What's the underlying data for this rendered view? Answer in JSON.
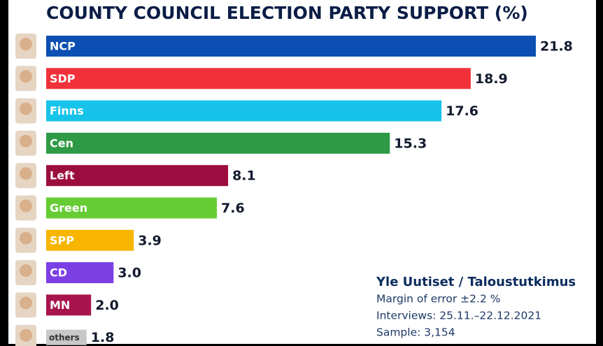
{
  "chart_data": {
    "type": "bar",
    "orientation": "horizontal",
    "title": "COUNTY COUNCIL ELECTION PARTY SUPPORT (%)",
    "categories": [
      "NCP",
      "SDP",
      "Finns",
      "Cen",
      "Left",
      "Green",
      "SPP",
      "CD",
      "MN",
      "others"
    ],
    "values": [
      21.8,
      18.9,
      17.6,
      15.3,
      8.1,
      7.6,
      3.9,
      3.0,
      2.0,
      1.8
    ],
    "value_labels": [
      "21.8",
      "18.9",
      "17.6",
      "15.3",
      "8.1",
      "7.6",
      "3.9",
      "3.0",
      "2.0",
      "1.8"
    ],
    "colors": [
      "#0b4fb3",
      "#f0313a",
      "#17c3e8",
      "#2e9a45",
      "#9c0d3f",
      "#66cc33",
      "#f7b500",
      "#7b3fe4",
      "#a8144d",
      "#c8c8c8"
    ],
    "source": "Yle Uutiset / Taloustutkimus",
    "notes": [
      "Margin of error ±2.2 %",
      "Interviews: 25.11.–22.12.2021",
      "Sample: 3,154"
    ]
  }
}
